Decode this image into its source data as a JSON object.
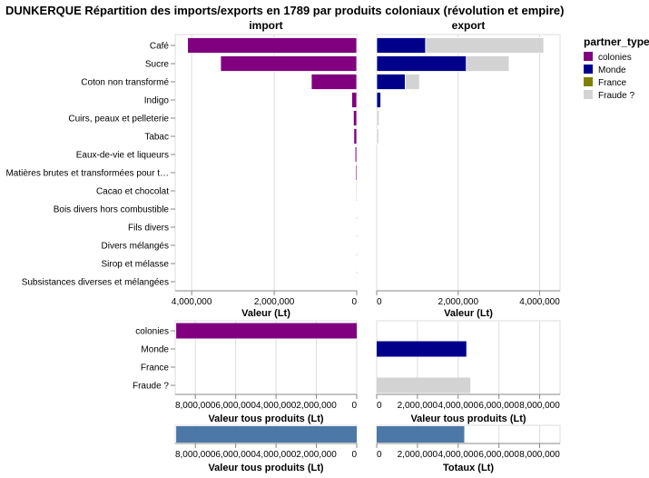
{
  "title": "DUNKERQUE  Répartition des imports/exports en 1789 par produits coloniaux (révolution et empire)",
  "legend": {
    "title": "partner_type",
    "items": [
      {
        "label": "colonies",
        "color": "#800080"
      },
      {
        "label": "Monde",
        "color": "#00008b"
      },
      {
        "label": "France",
        "color": "#808000"
      },
      {
        "label": "Fraude ?",
        "color": "#d3d3d3"
      }
    ]
  },
  "chart_data": [
    {
      "type": "bar",
      "title": "import",
      "xlabel": "Valeur (Lt)",
      "orientation": "horizontal",
      "reversed_axis": true,
      "xlim": [
        0,
        4400000
      ],
      "ticks": [
        0,
        2000000,
        4000000
      ],
      "tick_labels": [
        "0",
        "2,000,000",
        "4,000,000"
      ],
      "categories": [
        "Café",
        "Sucre",
        "Coton non transformé",
        "Indigo",
        "Cuirs, peaux et pelleterie",
        "Tabac",
        "Eaux-de-vie et liqueurs",
        "Matières brutes et transformées pour t…",
        "Cacao et chocolat",
        "Bois divers hors combustible",
        "Fils divers",
        "Divers mélangés",
        "Sirop et mélasse",
        "Subsistances diverses et mélangées"
      ],
      "series": [
        {
          "name": "colonies",
          "color": "#800080",
          "values": [
            4100000,
            3300000,
            1100000,
            120000,
            80000,
            70000,
            40000,
            30000,
            20000,
            10000,
            5000,
            3000,
            2000,
            1000
          ]
        },
        {
          "name": "Monde",
          "color": "#00008b",
          "values": [
            0,
            0,
            0,
            0,
            0,
            0,
            0,
            0,
            0,
            0,
            0,
            0,
            0,
            0
          ]
        },
        {
          "name": "France",
          "color": "#808000",
          "values": [
            0,
            0,
            0,
            0,
            0,
            0,
            0,
            0,
            0,
            0,
            0,
            0,
            0,
            0
          ]
        },
        {
          "name": "Fraude ?",
          "color": "#d3d3d3",
          "values": [
            0,
            0,
            0,
            0,
            0,
            0,
            0,
            0,
            0,
            0,
            0,
            0,
            0,
            0
          ]
        }
      ]
    },
    {
      "type": "bar",
      "title": "export",
      "xlabel": "Valeur (Lt)",
      "orientation": "horizontal",
      "xlim": [
        0,
        4500000
      ],
      "ticks": [
        0,
        2000000,
        4000000
      ],
      "tick_labels": [
        "0",
        "2,000,000",
        "4,000,000"
      ],
      "categories": [
        "Café",
        "Sucre",
        "Coton non transformé",
        "Indigo",
        "Cuirs, peaux et pelleterie",
        "Tabac",
        "Eaux-de-vie et liqueurs",
        "Matières brutes et transformées pour t…",
        "Cacao et chocolat",
        "Bois divers hors combustible",
        "Fils divers",
        "Divers mélangés",
        "Sirop et mélasse",
        "Subsistances diverses et mélangées"
      ],
      "series": [
        {
          "name": "colonies",
          "color": "#800080",
          "values": [
            0,
            0,
            0,
            0,
            0,
            0,
            0,
            0,
            0,
            0,
            0,
            0,
            0,
            0
          ]
        },
        {
          "name": "Monde",
          "color": "#00008b",
          "values": [
            1200000,
            2200000,
            700000,
            100000,
            0,
            0,
            0,
            0,
            0,
            0,
            0,
            0,
            0,
            0
          ]
        },
        {
          "name": "France",
          "color": "#808000",
          "values": [
            0,
            0,
            0,
            0,
            0,
            0,
            0,
            0,
            0,
            0,
            0,
            0,
            0,
            0
          ]
        },
        {
          "name": "Fraude ?",
          "color": "#d3d3d3",
          "values": [
            2900000,
            1050000,
            350000,
            0,
            60000,
            50000,
            0,
            0,
            0,
            0,
            0,
            0,
            0,
            0
          ]
        }
      ]
    },
    {
      "type": "bar",
      "xlabel": "Valeur tous produits (Lt)",
      "orientation": "horizontal",
      "reversed_axis": true,
      "xlim": [
        0,
        9000000
      ],
      "ticks": [
        0,
        2000000,
        4000000,
        6000000,
        8000000
      ],
      "tick_labels": [
        "0",
        "2,000,000",
        "4,000,000",
        "6,000,000",
        "8,000,000"
      ],
      "categories": [
        "colonies",
        "Monde",
        "France",
        "Fraude ?"
      ],
      "colors": [
        "#800080",
        "#00008b",
        "#808000",
        "#d3d3d3"
      ],
      "values": [
        8950000,
        0,
        0,
        0
      ]
    },
    {
      "type": "bar",
      "xlabel": "Valeur tous produits (Lt)",
      "orientation": "horizontal",
      "xlim": [
        0,
        9000000
      ],
      "ticks": [
        0,
        2000000,
        4000000,
        6000000,
        8000000
      ],
      "tick_labels": [
        "0",
        "2,000,000",
        "4,000,000",
        "6,000,000",
        "8,000,000"
      ],
      "categories": [
        "colonies",
        "Monde",
        "France",
        "Fraude ?"
      ],
      "colors": [
        "#800080",
        "#00008b",
        "#808000",
        "#d3d3d3"
      ],
      "values": [
        0,
        4400000,
        0,
        4600000
      ]
    },
    {
      "type": "bar",
      "xlabel": "Valeur tous produits (Lt)",
      "orientation": "horizontal",
      "reversed_axis": true,
      "xlim": [
        0,
        9000000
      ],
      "ticks": [
        0,
        2000000,
        4000000,
        6000000,
        8000000
      ],
      "tick_labels": [
        "0",
        "2,000,000",
        "4,000,000",
        "6,000,000",
        "8,000,000"
      ],
      "color": "#4c78a8",
      "values": [
        8950000
      ]
    },
    {
      "type": "bar",
      "xlabel": "Totaux (Lt)",
      "orientation": "horizontal",
      "xlim": [
        0,
        9000000
      ],
      "ticks": [
        0,
        2000000,
        4000000,
        6000000,
        8000000
      ],
      "tick_labels": [
        "0",
        "2,000,000",
        "4,000,000",
        "6,000,000",
        "8,000,000"
      ],
      "color": "#4c78a8",
      "values": [
        4300000
      ]
    }
  ]
}
